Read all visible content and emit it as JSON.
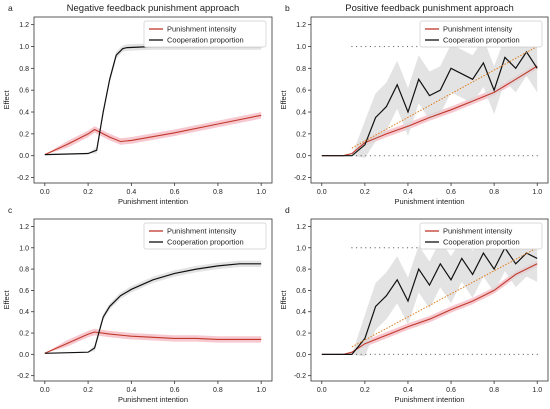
{
  "figure": {
    "column_titles": [
      "Negative feedback punishment approach",
      "Positive feedback punishment approach"
    ]
  },
  "colors": {
    "intensity": "#c0392b",
    "cooperation": "#111111",
    "intensity_band": "#f4b6bf",
    "cooperation_band": "#d9d9d9",
    "dotted_trend": "#e07b1a"
  },
  "chart_data": [
    {
      "type": "line",
      "panel_label": "a",
      "title": "Negative feedback punishment approach",
      "xlabel": "Punishment intention",
      "ylabel": "Effect",
      "xlim": [
        -0.05,
        1.05
      ],
      "ylim": [
        -0.25,
        1.27
      ],
      "xticks": [
        "0.0",
        "0.2",
        "0.4",
        "0.6",
        "0.8",
        "1.0"
      ],
      "yticks": [
        "-0.2",
        "0.0",
        "0.2",
        "0.4",
        "0.6",
        "0.8",
        "1.0",
        "1.2"
      ],
      "legend": {
        "position": "top-right",
        "entries": [
          "Punishment intensity",
          "Cooperation proportion"
        ]
      },
      "series": [
        {
          "name": "Punishment intensity",
          "x": [
            0,
            0.1,
            0.2,
            0.23,
            0.3,
            0.35,
            0.4,
            0.6,
            0.8,
            1.0
          ],
          "y": [
            0.01,
            0.1,
            0.2,
            0.24,
            0.17,
            0.13,
            0.14,
            0.21,
            0.29,
            0.37
          ]
        },
        {
          "name": "Cooperation proportion",
          "x": [
            0,
            0.2,
            0.24,
            0.27,
            0.3,
            0.33,
            0.36,
            0.38,
            0.5,
            1.0
          ],
          "y": [
            0.01,
            0.02,
            0.05,
            0.4,
            0.7,
            0.92,
            0.98,
            0.99,
            1.0,
            1.0
          ]
        }
      ]
    },
    {
      "type": "line",
      "panel_label": "b",
      "title": "Positive feedback punishment approach",
      "xlabel": "Punishment intention",
      "ylabel": "Effect",
      "xlim": [
        -0.05,
        1.05
      ],
      "ylim": [
        -0.25,
        1.27
      ],
      "xticks": [
        "0.0",
        "0.2",
        "0.4",
        "0.6",
        "0.8",
        "1.0"
      ],
      "yticks": [
        "-0.2",
        "0.0",
        "0.2",
        "0.4",
        "0.6",
        "0.8",
        "1.0",
        "1.2"
      ],
      "legend": {
        "position": "top-right",
        "entries": [
          "Punishment intensity",
          "Cooperation proportion"
        ]
      },
      "series": [
        {
          "name": "Punishment intensity",
          "x": [
            0,
            0.1,
            0.14,
            0.2,
            0.3,
            0.4,
            0.5,
            0.6,
            0.7,
            0.8,
            0.9,
            1.0
          ],
          "y": [
            0.0,
            0.0,
            0.02,
            0.12,
            0.2,
            0.27,
            0.35,
            0.42,
            0.5,
            0.58,
            0.7,
            0.82
          ]
        },
        {
          "name": "Cooperation proportion",
          "x": [
            0,
            0.14,
            0.2,
            0.25,
            0.3,
            0.35,
            0.4,
            0.45,
            0.5,
            0.55,
            0.6,
            0.65,
            0.7,
            0.75,
            0.8,
            0.85,
            0.9,
            0.95,
            1.0
          ],
          "y": [
            0.0,
            0.0,
            0.1,
            0.35,
            0.45,
            0.65,
            0.4,
            0.7,
            0.55,
            0.6,
            0.8,
            0.75,
            0.7,
            0.85,
            0.6,
            0.9,
            0.8,
            0.95,
            0.8
          ]
        },
        {
          "name": "",
          "x": [
            0.14,
            1.0
          ],
          "y": [
            0.07,
            1.0
          ]
        }
      ]
    },
    {
      "type": "line",
      "panel_label": "c",
      "title": "",
      "xlabel": "Punishment intention",
      "ylabel": "Effect",
      "xlim": [
        -0.05,
        1.05
      ],
      "ylim": [
        -0.25,
        1.27
      ],
      "xticks": [
        "0.0",
        "0.2",
        "0.4",
        "0.6",
        "0.8",
        "1.0"
      ],
      "yticks": [
        "-0.2",
        "0.0",
        "0.2",
        "0.4",
        "0.6",
        "0.8",
        "1.0",
        "1.2"
      ],
      "legend": {
        "position": "top-right",
        "entries": [
          "Punishment intensity",
          "Cooperation proportion"
        ]
      },
      "series": [
        {
          "name": "Punishment intensity",
          "x": [
            0,
            0.1,
            0.2,
            0.23,
            0.3,
            0.4,
            0.5,
            0.6,
            0.7,
            0.8,
            0.9,
            1.0
          ],
          "y": [
            0.01,
            0.1,
            0.19,
            0.21,
            0.19,
            0.17,
            0.16,
            0.15,
            0.15,
            0.14,
            0.14,
            0.14
          ]
        },
        {
          "name": "Cooperation proportion",
          "x": [
            0,
            0.2,
            0.23,
            0.27,
            0.3,
            0.35,
            0.4,
            0.5,
            0.6,
            0.7,
            0.8,
            0.9,
            1.0
          ],
          "y": [
            0.01,
            0.02,
            0.06,
            0.35,
            0.45,
            0.55,
            0.61,
            0.7,
            0.76,
            0.8,
            0.83,
            0.85,
            0.85
          ]
        }
      ]
    },
    {
      "type": "line",
      "panel_label": "d",
      "title": "",
      "xlabel": "Punishment intention",
      "ylabel": "Effect",
      "xlim": [
        -0.05,
        1.05
      ],
      "ylim": [
        -0.25,
        1.27
      ],
      "xticks": [
        "0.0",
        "0.2",
        "0.4",
        "0.6",
        "0.8",
        "1.0"
      ],
      "yticks": [
        "-0.2",
        "0.0",
        "0.2",
        "0.4",
        "0.6",
        "0.8",
        "1.0",
        "1.2"
      ],
      "legend": {
        "position": "top-right",
        "entries": [
          "Punishment intensity",
          "Cooperation proportion"
        ]
      },
      "series": [
        {
          "name": "Punishment intensity",
          "x": [
            0,
            0.1,
            0.14,
            0.2,
            0.3,
            0.4,
            0.5,
            0.6,
            0.7,
            0.8,
            0.9,
            1.0
          ],
          "y": [
            0.0,
            0.0,
            0.02,
            0.1,
            0.18,
            0.26,
            0.33,
            0.42,
            0.5,
            0.6,
            0.75,
            0.85
          ]
        },
        {
          "name": "Cooperation proportion",
          "x": [
            0,
            0.14,
            0.2,
            0.25,
            0.3,
            0.35,
            0.4,
            0.45,
            0.5,
            0.55,
            0.6,
            0.65,
            0.7,
            0.75,
            0.8,
            0.85,
            0.9,
            0.95,
            1.0
          ],
          "y": [
            0.0,
            0.0,
            0.15,
            0.45,
            0.55,
            0.7,
            0.5,
            0.8,
            0.65,
            0.85,
            0.7,
            0.9,
            0.75,
            0.95,
            0.8,
            1.0,
            0.85,
            0.95,
            0.9
          ]
        },
        {
          "name": "",
          "x": [
            0.14,
            1.0
          ],
          "y": [
            0.07,
            1.0
          ]
        }
      ]
    }
  ]
}
